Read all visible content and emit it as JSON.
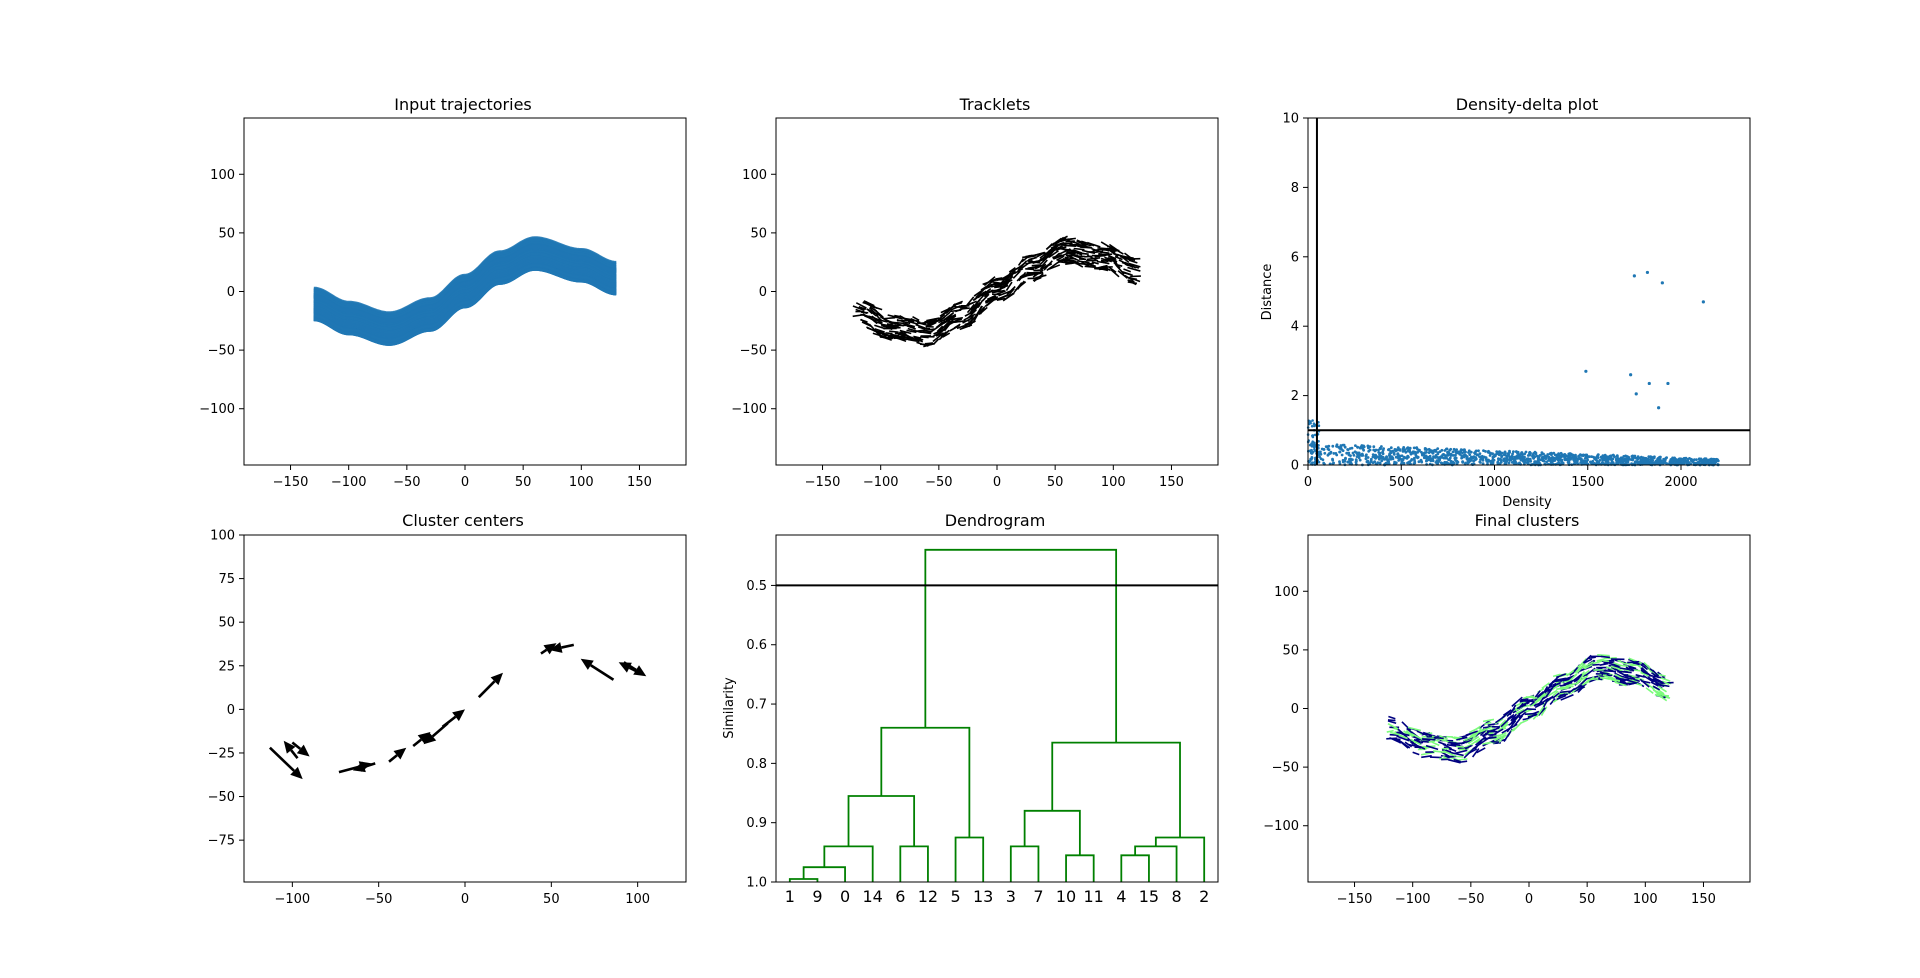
{
  "figure": {
    "panels": 6
  },
  "chart_data": [
    {
      "type": "area",
      "title": "Input trajectories",
      "xlabel": "",
      "ylabel": "",
      "xlim": [
        -190,
        190
      ],
      "ylim": [
        -148,
        148
      ],
      "xticks": [
        -150,
        -100,
        -50,
        0,
        50,
        100,
        150
      ],
      "yticks": [
        -100,
        -50,
        0,
        50,
        100
      ],
      "xtick_labels": [
        "−150",
        "−100",
        "−50",
        "0",
        "50",
        "100",
        "150"
      ],
      "ytick_labels": [
        "−100",
        "−50",
        "0",
        "50",
        "100"
      ],
      "band": {
        "x_range": [
          -130,
          130
        ],
        "center": [
          [
            -130,
            -11
          ],
          [
            -100,
            -23
          ],
          [
            -65,
            -32
          ],
          [
            -30,
            -20
          ],
          [
            0,
            0
          ],
          [
            30,
            20
          ],
          [
            60,
            32
          ],
          [
            100,
            22
          ],
          [
            130,
            11
          ]
        ],
        "half_width": 14
      },
      "color": "#1f77b4",
      "grid": false
    },
    {
      "type": "scatter",
      "title": "Tracklets",
      "xlabel": "",
      "ylabel": "",
      "xlim": [
        -190,
        190
      ],
      "ylim": [
        -148,
        148
      ],
      "xticks": [
        -150,
        -100,
        -50,
        0,
        50,
        100,
        150
      ],
      "yticks": [
        -100,
        -50,
        0,
        50,
        100
      ],
      "xtick_labels": [
        "−150",
        "−100",
        "−50",
        "0",
        "50",
        "100",
        "150"
      ],
      "ytick_labels": [
        "−100",
        "−50",
        "0",
        "50",
        "100"
      ],
      "band": {
        "x_range": [
          -120,
          120
        ],
        "center": [
          [
            -120,
            -18
          ],
          [
            -90,
            -30
          ],
          [
            -60,
            -35
          ],
          [
            -30,
            -20
          ],
          [
            0,
            0
          ],
          [
            30,
            20
          ],
          [
            60,
            35
          ],
          [
            90,
            30
          ],
          [
            120,
            18
          ]
        ],
        "half_width": 11
      },
      "color": "#000000",
      "grid": false
    },
    {
      "type": "scatter",
      "title": "Density-delta plot",
      "xlabel": "Density",
      "ylabel": "Distance",
      "xlim": [
        0,
        2370
      ],
      "ylim": [
        0,
        10
      ],
      "xticks": [
        0,
        500,
        1000,
        1500,
        2000
      ],
      "yticks": [
        0,
        2,
        4,
        6,
        8,
        10
      ],
      "outliers": [
        [
          1820,
          5.55
        ],
        [
          1750,
          5.45
        ],
        [
          1900,
          5.25
        ],
        [
          2120,
          4.7
        ],
        [
          1490,
          2.7
        ],
        [
          1730,
          2.6
        ],
        [
          1830,
          2.35
        ],
        [
          1930,
          2.35
        ],
        [
          1760,
          2.05
        ],
        [
          1880,
          1.65
        ]
      ],
      "low_points_density_range": [
        0,
        2200
      ],
      "vline": 48,
      "hline": 1.0,
      "color": "#1f77b4",
      "grid": false
    },
    {
      "type": "scatter",
      "title": "Cluster centers",
      "xlabel": "",
      "ylabel": "",
      "xlim": [
        -128,
        128
      ],
      "ylim": [
        -99,
        100
      ],
      "xticks": [
        -100,
        -50,
        0,
        50,
        100
      ],
      "yticks": [
        -75,
        -50,
        -25,
        0,
        25,
        50,
        75,
        100
      ],
      "xtick_labels": [
        "−100",
        "−50",
        "0",
        "50",
        "100"
      ],
      "ytick_labels": [
        "−75",
        "−50",
        "−25",
        "0",
        "25",
        "50",
        "75",
        "100"
      ],
      "arrows": [
        [
          -113,
          -22,
          -94,
          -40
        ],
        [
          -100,
          -19,
          -90,
          -27
        ],
        [
          -97,
          -28,
          -105,
          -18
        ],
        [
          -73,
          -36,
          -54,
          -31
        ],
        [
          -52,
          -31,
          -65,
          -35
        ],
        [
          -44,
          -30,
          -34,
          -22
        ],
        [
          -30,
          -21,
          -20,
          -13
        ],
        [
          -10,
          -8,
          -24,
          -20
        ],
        [
          -13,
          -10,
          0,
          0
        ],
        [
          8,
          7,
          22,
          21
        ],
        [
          44,
          32,
          53,
          38
        ],
        [
          63,
          37,
          49,
          34
        ],
        [
          86,
          17,
          67,
          29
        ],
        [
          92,
          27,
          105,
          19
        ],
        [
          103,
          20,
          89,
          27
        ]
      ],
      "color": "#000000",
      "grid": false
    },
    {
      "type": "line",
      "title": "Dendrogram",
      "xlabel": "",
      "ylabel": "Similarity",
      "ylim": [
        1.0,
        0.415
      ],
      "yticks": [
        0.5,
        0.6,
        0.7,
        0.8,
        0.9,
        1.0
      ],
      "ytick_labels": [
        "0.5",
        "0.6",
        "0.7",
        "0.8",
        "0.9",
        "1.0"
      ],
      "leaves": [
        "1",
        "9",
        "0",
        "14",
        "6",
        "12",
        "5",
        "13",
        "3",
        "7",
        "10",
        "11",
        "4",
        "15",
        "8",
        "2"
      ],
      "links": [
        [
          0,
          1,
          0.995
        ],
        [
          16,
          2,
          0.975
        ],
        [
          17,
          3,
          0.94
        ],
        [
          4,
          5,
          0.94
        ],
        [
          18,
          19,
          0.855
        ],
        [
          6,
          7,
          0.925
        ],
        [
          20,
          21,
          0.74
        ],
        [
          8,
          9,
          0.94
        ],
        [
          10,
          11,
          0.955
        ],
        [
          23,
          24,
          0.88
        ],
        [
          12,
          13,
          0.955
        ],
        [
          26,
          14,
          0.94
        ],
        [
          27,
          15,
          0.925
        ],
        [
          25,
          28,
          0.765
        ],
        [
          22,
          29,
          0.44
        ]
      ],
      "hline": 0.5,
      "color": "#008000",
      "grid": false
    },
    {
      "type": "scatter",
      "title": "Final clusters",
      "xlabel": "",
      "ylabel": "",
      "xlim": [
        -190,
        190
      ],
      "ylim": [
        -148,
        148
      ],
      "xticks": [
        -150,
        -100,
        -50,
        0,
        50,
        100,
        150
      ],
      "yticks": [
        -100,
        -50,
        0,
        50,
        100
      ],
      "xtick_labels": [
        "−150",
        "−100",
        "−50",
        "0",
        "50",
        "100",
        "150"
      ],
      "ytick_labels": [
        "−100",
        "−50",
        "0",
        "50",
        "100"
      ],
      "band": {
        "x_range": [
          -120,
          120
        ],
        "center": [
          [
            -120,
            -18
          ],
          [
            -90,
            -30
          ],
          [
            -60,
            -35
          ],
          [
            -30,
            -20
          ],
          [
            0,
            0
          ],
          [
            30,
            20
          ],
          [
            60,
            35
          ],
          [
            90,
            30
          ],
          [
            120,
            18
          ]
        ],
        "half_width": 11
      },
      "colors": [
        "#000080",
        "#7CFC7C"
      ],
      "grid": false
    }
  ]
}
